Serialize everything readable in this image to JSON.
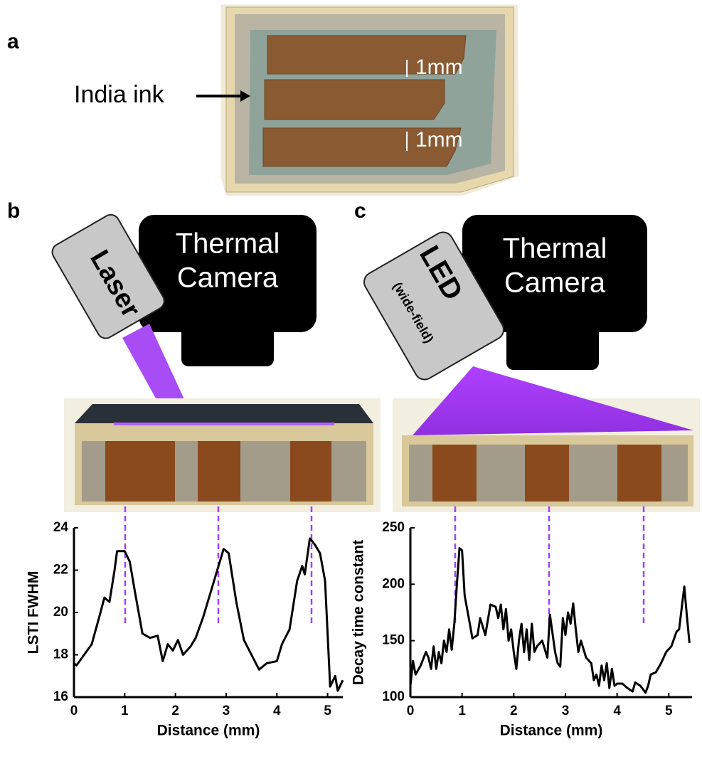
{
  "panels": {
    "a": "a",
    "b": "b",
    "c": "c"
  },
  "diagram": {
    "ink_label": "India ink",
    "gap_labels": [
      "1mm",
      "1mm"
    ],
    "laser": "Laser",
    "camera_b": [
      "Thermal",
      "Camera"
    ],
    "led": "LED",
    "led_sub": "(wide-field)",
    "camera_c": [
      "Thermal",
      "Camera"
    ]
  },
  "chart_data": [
    {
      "type": "line",
      "x_label": "Distance (mm)",
      "y_label": "LSTI FWHM",
      "color": "#000000",
      "xlim": [
        0,
        5.3
      ],
      "ylim": [
        16,
        24
      ],
      "xticks": [
        0,
        1,
        2,
        3,
        4,
        5
      ],
      "yticks": [
        16,
        18,
        20,
        22,
        24
      ],
      "x": [
        0,
        0.05,
        0.2,
        0.35,
        0.5,
        0.6,
        0.7,
        0.8,
        0.85,
        1.0,
        1.1,
        1.2,
        1.35,
        1.5,
        1.65,
        1.75,
        1.85,
        1.95,
        2.05,
        2.15,
        2.3,
        2.4,
        2.55,
        2.7,
        2.85,
        2.95,
        3.05,
        3.2,
        3.35,
        3.5,
        3.65,
        3.8,
        4.0,
        4.1,
        4.25,
        4.4,
        4.5,
        4.55,
        4.65,
        4.75,
        4.85,
        4.95,
        5.05,
        5.15,
        5.2,
        5.3
      ],
      "values": [
        17.6,
        17.5,
        18.0,
        18.5,
        19.8,
        20.7,
        20.5,
        22.0,
        22.9,
        22.9,
        22.4,
        21.0,
        19.0,
        18.8,
        18.9,
        17.7,
        18.5,
        18.2,
        18.7,
        18.0,
        18.4,
        18.8,
        19.8,
        21.0,
        22.2,
        23.0,
        22.8,
        20.5,
        18.7,
        18.0,
        17.3,
        17.6,
        17.7,
        18.5,
        19.2,
        21.5,
        22.2,
        21.8,
        23.5,
        23.2,
        22.8,
        21.5,
        16.5,
        17.0,
        16.3,
        16.8
      ]
    },
    {
      "type": "line",
      "x_label": "Distance (mm)",
      "y_label": "Decay time constant",
      "color": "#000000",
      "xlim": [
        0,
        5.45
      ],
      "ylim": [
        100,
        250
      ],
      "xticks": [
        0,
        1,
        2,
        3,
        4,
        5
      ],
      "yticks": [
        100,
        150,
        200,
        250
      ],
      "x": [
        0,
        0.05,
        0.1,
        0.2,
        0.3,
        0.35,
        0.4,
        0.45,
        0.5,
        0.55,
        0.6,
        0.65,
        0.7,
        0.75,
        0.8,
        0.85,
        0.9,
        0.95,
        1.0,
        1.05,
        1.15,
        1.2,
        1.3,
        1.35,
        1.45,
        1.55,
        1.65,
        1.7,
        1.75,
        1.8,
        1.85,
        1.9,
        1.95,
        2.0,
        2.05,
        2.1,
        2.15,
        2.2,
        2.25,
        2.3,
        2.35,
        2.4,
        2.45,
        2.55,
        2.65,
        2.7,
        2.8,
        2.85,
        2.9,
        2.95,
        3.0,
        3.05,
        3.1,
        3.15,
        3.2,
        3.25,
        3.3,
        3.4,
        3.5,
        3.55,
        3.6,
        3.65,
        3.7,
        3.75,
        3.8,
        3.85,
        3.9,
        3.95,
        4.0,
        4.1,
        4.2,
        4.3,
        4.35,
        4.45,
        4.55,
        4.6,
        4.65,
        4.75,
        4.85,
        4.95,
        5.05,
        5.15,
        5.2,
        5.3,
        5.35,
        5.4
      ],
      "values": [
        110,
        132,
        120,
        128,
        140,
        135,
        125,
        145,
        125,
        140,
        130,
        150,
        140,
        160,
        142,
        165,
        200,
        232,
        230,
        190,
        165,
        152,
        155,
        170,
        155,
        182,
        180,
        170,
        182,
        160,
        178,
        150,
        160,
        140,
        125,
        150,
        165,
        140,
        160,
        133,
        165,
        140,
        145,
        150,
        135,
        173,
        140,
        130,
        127,
        170,
        155,
        175,
        165,
        183,
        160,
        140,
        150,
        135,
        130,
        115,
        120,
        110,
        128,
        115,
        130,
        108,
        125,
        110,
        112,
        112,
        108,
        105,
        113,
        110,
        104,
        110,
        120,
        122,
        130,
        140,
        145,
        158,
        160,
        198,
        172,
        148
      ]
    }
  ]
}
